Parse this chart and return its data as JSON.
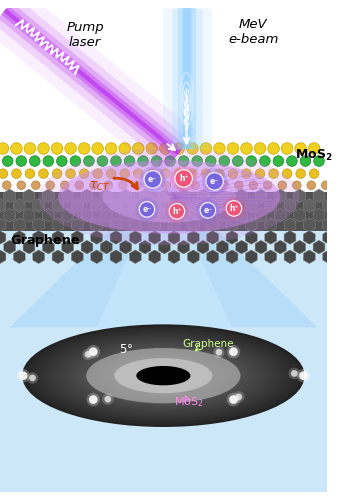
{
  "bg_color": "#ffffff",
  "pump_laser_label": "Pump\nlaser",
  "ebeam_label": "MeV\ne-beam",
  "mos2_label": "MoS$_2$",
  "graphene_label": "Graphene",
  "angle_label": "5°",
  "graphene_spot_label": "Graphene",
  "mos2_spot_label": "MoS$_2$",
  "pump_color": "#cc44ee",
  "ebeam_color": "#88ccff",
  "electron_color": "#7766dd",
  "hole_color": "#ee5577",
  "tau_color": "#cc4400",
  "sulfur_color": "#f0d000",
  "mo_color": "#30b840",
  "graphene_hex_color": "#666666",
  "graphene_bg_color": "#505050",
  "disk_color": "#303030",
  "purple_oval_color": "#cc88ee",
  "graphene_label_color": "#ccff88",
  "mos2_label_color": "#ff88ee"
}
